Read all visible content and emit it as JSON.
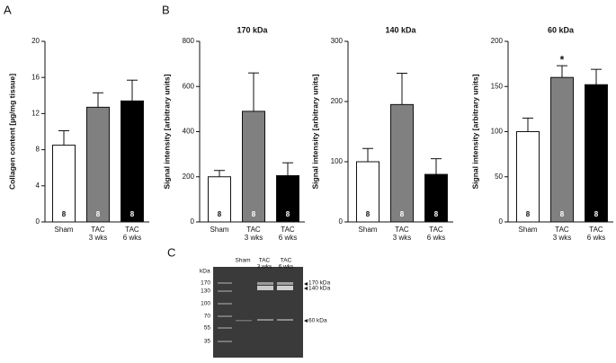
{
  "panels": [
    "A",
    "B",
    "C"
  ],
  "chart_data": [
    {
      "type": "bar",
      "ylabel": "Collagen content [µg/mg tissue]",
      "categories": [
        [
          "Sham"
        ],
        [
          "TAC",
          "3 wks"
        ],
        [
          "TAC",
          "6 wks"
        ]
      ],
      "values": [
        8.5,
        12.7,
        13.4
      ],
      "errors": [
        1.6,
        1.6,
        2.3
      ],
      "n": [
        8,
        8,
        8
      ],
      "colors": [
        "#ffffff",
        "#808080",
        "#000000"
      ],
      "ylim": [
        0,
        20
      ],
      "yticks": [
        0,
        4,
        8,
        12,
        16,
        20
      ]
    },
    {
      "type": "bar",
      "title": "170 kDa",
      "ylabel": "Signal intensity [arbitrary units]",
      "categories": [
        [
          "Sham"
        ],
        [
          "TAC",
          "3 wks"
        ],
        [
          "TAC",
          "6 wks"
        ]
      ],
      "values": [
        200,
        490,
        205
      ],
      "errors": [
        28,
        170,
        57
      ],
      "n": [
        8,
        8,
        8
      ],
      "colors": [
        "#ffffff",
        "#808080",
        "#000000"
      ],
      "ylim": [
        0,
        800
      ],
      "yticks": [
        0,
        200,
        400,
        600,
        800
      ]
    },
    {
      "type": "bar",
      "title": "140 kDa",
      "ylabel": "Signal intensity [arbitrary units]",
      "categories": [
        [
          "Sham"
        ],
        [
          "TAC",
          "3 wks"
        ],
        [
          "TAC",
          "6 wks"
        ]
      ],
      "values": [
        100,
        195,
        79
      ],
      "errors": [
        22,
        52,
        26
      ],
      "n": [
        8,
        8,
        8
      ],
      "colors": [
        "#ffffff",
        "#808080",
        "#000000"
      ],
      "ylim": [
        0,
        300
      ],
      "yticks": [
        0,
        100,
        200,
        300
      ]
    },
    {
      "type": "bar",
      "title": "60 kDa",
      "ylabel": "Signal intensity [arbitrary units]",
      "categories": [
        [
          "Sham"
        ],
        [
          "TAC",
          "3 wks"
        ],
        [
          "TAC",
          "6 wks"
        ]
      ],
      "values": [
        100,
        160,
        152
      ],
      "errors": [
        15,
        13,
        17
      ],
      "n": [
        8,
        8,
        8
      ],
      "significance": [
        null,
        "*",
        null
      ],
      "colors": [
        "#ffffff",
        "#808080",
        "#000000"
      ],
      "ylim": [
        0,
        200
      ],
      "yticks": [
        0,
        50,
        100,
        150,
        200
      ]
    }
  ],
  "gel": {
    "unit": "kDa",
    "markers": [
      170,
      130,
      100,
      70,
      55,
      35
    ],
    "lanes": [
      [
        "Sham"
      ],
      [
        "TAC",
        "3 wks"
      ],
      [
        "TAC",
        "6 wks"
      ]
    ],
    "bands": [
      "170 kDa",
      "140 kDa",
      "60 kDa"
    ]
  }
}
